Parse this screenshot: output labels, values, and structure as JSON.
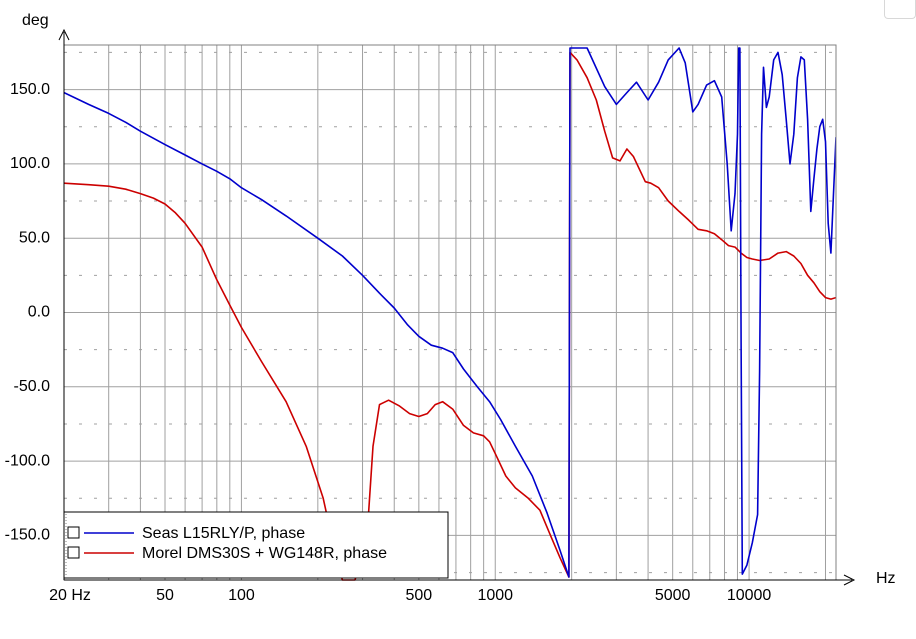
{
  "chart_data": {
    "type": "line",
    "ylabel": "deg",
    "xlabel": "Hz",
    "x_scale": "log",
    "xlim": [
      20,
      22000
    ],
    "ylim": [
      -180,
      180
    ],
    "grid": true,
    "legend_position": "bottom-left",
    "y_ticks": [
      150,
      100,
      50,
      0,
      -50,
      -100,
      -150
    ],
    "y_tick_labels": [
      "150.0",
      "100.0",
      "50.0",
      "0.0",
      "-50.0",
      "-100.0",
      "-150.0"
    ],
    "x_ticks": [
      20,
      50,
      100,
      500,
      1000,
      5000,
      10000
    ],
    "x_tick_labels": [
      "20 Hz",
      "50",
      "100",
      "500",
      "1000",
      "5000",
      "10000"
    ],
    "series": [
      {
        "name": "Seas L15RLY/P, phase",
        "color": "#0000cc",
        "points": [
          [
            20,
            148
          ],
          [
            25,
            140
          ],
          [
            30,
            134
          ],
          [
            35,
            128
          ],
          [
            40,
            122
          ],
          [
            50,
            113
          ],
          [
            60,
            106
          ],
          [
            70,
            100
          ],
          [
            80,
            95
          ],
          [
            90,
            90
          ],
          [
            100,
            84
          ],
          [
            120,
            76
          ],
          [
            150,
            65
          ],
          [
            200,
            50
          ],
          [
            250,
            38
          ],
          [
            300,
            25
          ],
          [
            350,
            13
          ],
          [
            400,
            3
          ],
          [
            450,
            -8
          ],
          [
            500,
            -16
          ],
          [
            560,
            -22
          ],
          [
            620,
            -24
          ],
          [
            680,
            -27
          ],
          [
            750,
            -38
          ],
          [
            850,
            -50
          ],
          [
            950,
            -60
          ],
          [
            1050,
            -72
          ],
          [
            1200,
            -90
          ],
          [
            1400,
            -110
          ],
          [
            1600,
            -135
          ],
          [
            1800,
            -160
          ],
          [
            1950,
            -178
          ],
          [
            1970,
            178
          ],
          [
            2300,
            178
          ],
          [
            2700,
            152
          ],
          [
            3000,
            140
          ],
          [
            3300,
            148
          ],
          [
            3600,
            155
          ],
          [
            4000,
            143
          ],
          [
            4400,
            155
          ],
          [
            4800,
            170
          ],
          [
            5300,
            178
          ],
          [
            5600,
            168
          ],
          [
            6000,
            135
          ],
          [
            6300,
            140
          ],
          [
            6800,
            153
          ],
          [
            7300,
            156
          ],
          [
            7800,
            145
          ],
          [
            8200,
            100
          ],
          [
            8500,
            55
          ],
          [
            8800,
            80
          ],
          [
            9000,
            120
          ],
          [
            9100,
            178
          ],
          [
            9200,
            178
          ],
          [
            9300,
            -20
          ],
          [
            9400,
            -176
          ],
          [
            9800,
            -170
          ],
          [
            10300,
            -155
          ],
          [
            10800,
            -136
          ],
          [
            11000,
            -40
          ],
          [
            11200,
            120
          ],
          [
            11400,
            165
          ],
          [
            11700,
            138
          ],
          [
            12000,
            145
          ],
          [
            12500,
            170
          ],
          [
            13000,
            175
          ],
          [
            13500,
            160
          ],
          [
            14000,
            130
          ],
          [
            14500,
            100
          ],
          [
            15000,
            120
          ],
          [
            15500,
            158
          ],
          [
            16000,
            172
          ],
          [
            16500,
            170
          ],
          [
            17000,
            130
          ],
          [
            17500,
            68
          ],
          [
            18000,
            90
          ],
          [
            18500,
            110
          ],
          [
            19000,
            125
          ],
          [
            19500,
            130
          ],
          [
            20000,
            115
          ],
          [
            20500,
            60
          ],
          [
            21000,
            40
          ],
          [
            21500,
            80
          ],
          [
            22000,
            118
          ]
        ]
      },
      {
        "name": "Morel DMS30S + WG148R, phase",
        "color": "#cc0000",
        "points": [
          [
            20,
            87
          ],
          [
            25,
            86
          ],
          [
            30,
            85
          ],
          [
            35,
            83
          ],
          [
            40,
            80
          ],
          [
            45,
            77
          ],
          [
            50,
            73
          ],
          [
            55,
            67
          ],
          [
            60,
            60
          ],
          [
            70,
            44
          ],
          [
            80,
            22
          ],
          [
            90,
            5
          ],
          [
            100,
            -10
          ],
          [
            120,
            -33
          ],
          [
            150,
            -60
          ],
          [
            180,
            -90
          ],
          [
            210,
            -125
          ],
          [
            240,
            -170
          ],
          [
            250,
            -180
          ],
          [
            280,
            -180
          ],
          [
            310,
            -160
          ],
          [
            330,
            -90
          ],
          [
            350,
            -62
          ],
          [
            380,
            -59
          ],
          [
            420,
            -63
          ],
          [
            460,
            -68
          ],
          [
            500,
            -70
          ],
          [
            540,
            -68
          ],
          [
            580,
            -62
          ],
          [
            620,
            -60
          ],
          [
            680,
            -65
          ],
          [
            750,
            -76
          ],
          [
            820,
            -81
          ],
          [
            900,
            -83
          ],
          [
            950,
            -87
          ],
          [
            1000,
            -95
          ],
          [
            1100,
            -110
          ],
          [
            1200,
            -118
          ],
          [
            1350,
            -125
          ],
          [
            1500,
            -133
          ],
          [
            1650,
            -150
          ],
          [
            1800,
            -165
          ],
          [
            1950,
            -178
          ],
          [
            1970,
            175
          ],
          [
            2100,
            170
          ],
          [
            2300,
            158
          ],
          [
            2500,
            143
          ],
          [
            2700,
            122
          ],
          [
            2900,
            104
          ],
          [
            3100,
            102
          ],
          [
            3300,
            110
          ],
          [
            3500,
            105
          ],
          [
            3900,
            88
          ],
          [
            4100,
            87
          ],
          [
            4400,
            84
          ],
          [
            4800,
            75
          ],
          [
            5300,
            68
          ],
          [
            5800,
            62
          ],
          [
            6300,
            56
          ],
          [
            6800,
            55
          ],
          [
            7300,
            53
          ],
          [
            7800,
            49
          ],
          [
            8300,
            45
          ],
          [
            8800,
            44
          ],
          [
            9300,
            40
          ],
          [
            9800,
            37
          ],
          [
            10300,
            36
          ],
          [
            11000,
            35
          ],
          [
            12000,
            36
          ],
          [
            13000,
            40
          ],
          [
            14000,
            41
          ],
          [
            15000,
            38
          ],
          [
            16000,
            33
          ],
          [
            17000,
            25
          ],
          [
            18000,
            20
          ],
          [
            19000,
            14
          ],
          [
            20000,
            10
          ],
          [
            21000,
            9
          ],
          [
            22000,
            10
          ]
        ]
      }
    ]
  }
}
